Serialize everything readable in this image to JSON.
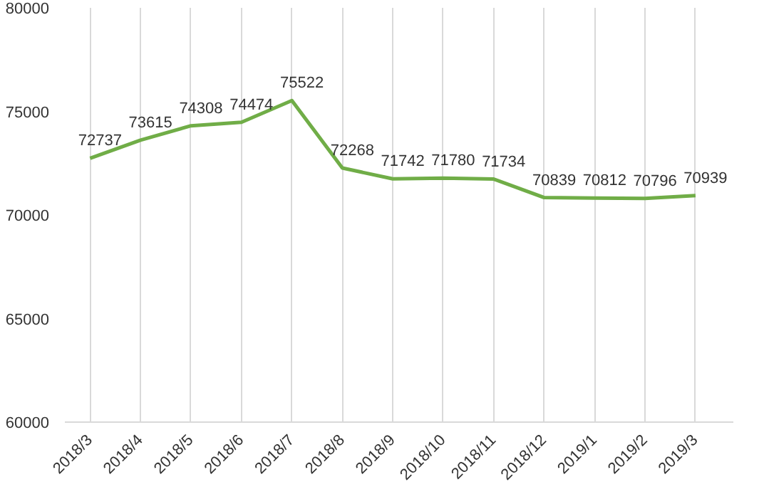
{
  "chart_data": {
    "type": "line",
    "categories": [
      "2018/3",
      "2018/4",
      "2018/5",
      "2018/6",
      "2018/7",
      "2018/8",
      "2018/9",
      "2018/10",
      "2018/11",
      "2018/12",
      "2019/1",
      "2019/2",
      "2019/3"
    ],
    "values": [
      72737,
      73615,
      74308,
      74474,
      75522,
      72268,
      71742,
      71780,
      71734,
      70839,
      70812,
      70796,
      70939
    ],
    "color": "#70ad47",
    "ylim": [
      60000,
      80000
    ],
    "yticks": [
      60000,
      65000,
      70000,
      75000,
      80000
    ],
    "grid": "x",
    "data_labels": true,
    "marker": "none",
    "line_style": "solid"
  }
}
